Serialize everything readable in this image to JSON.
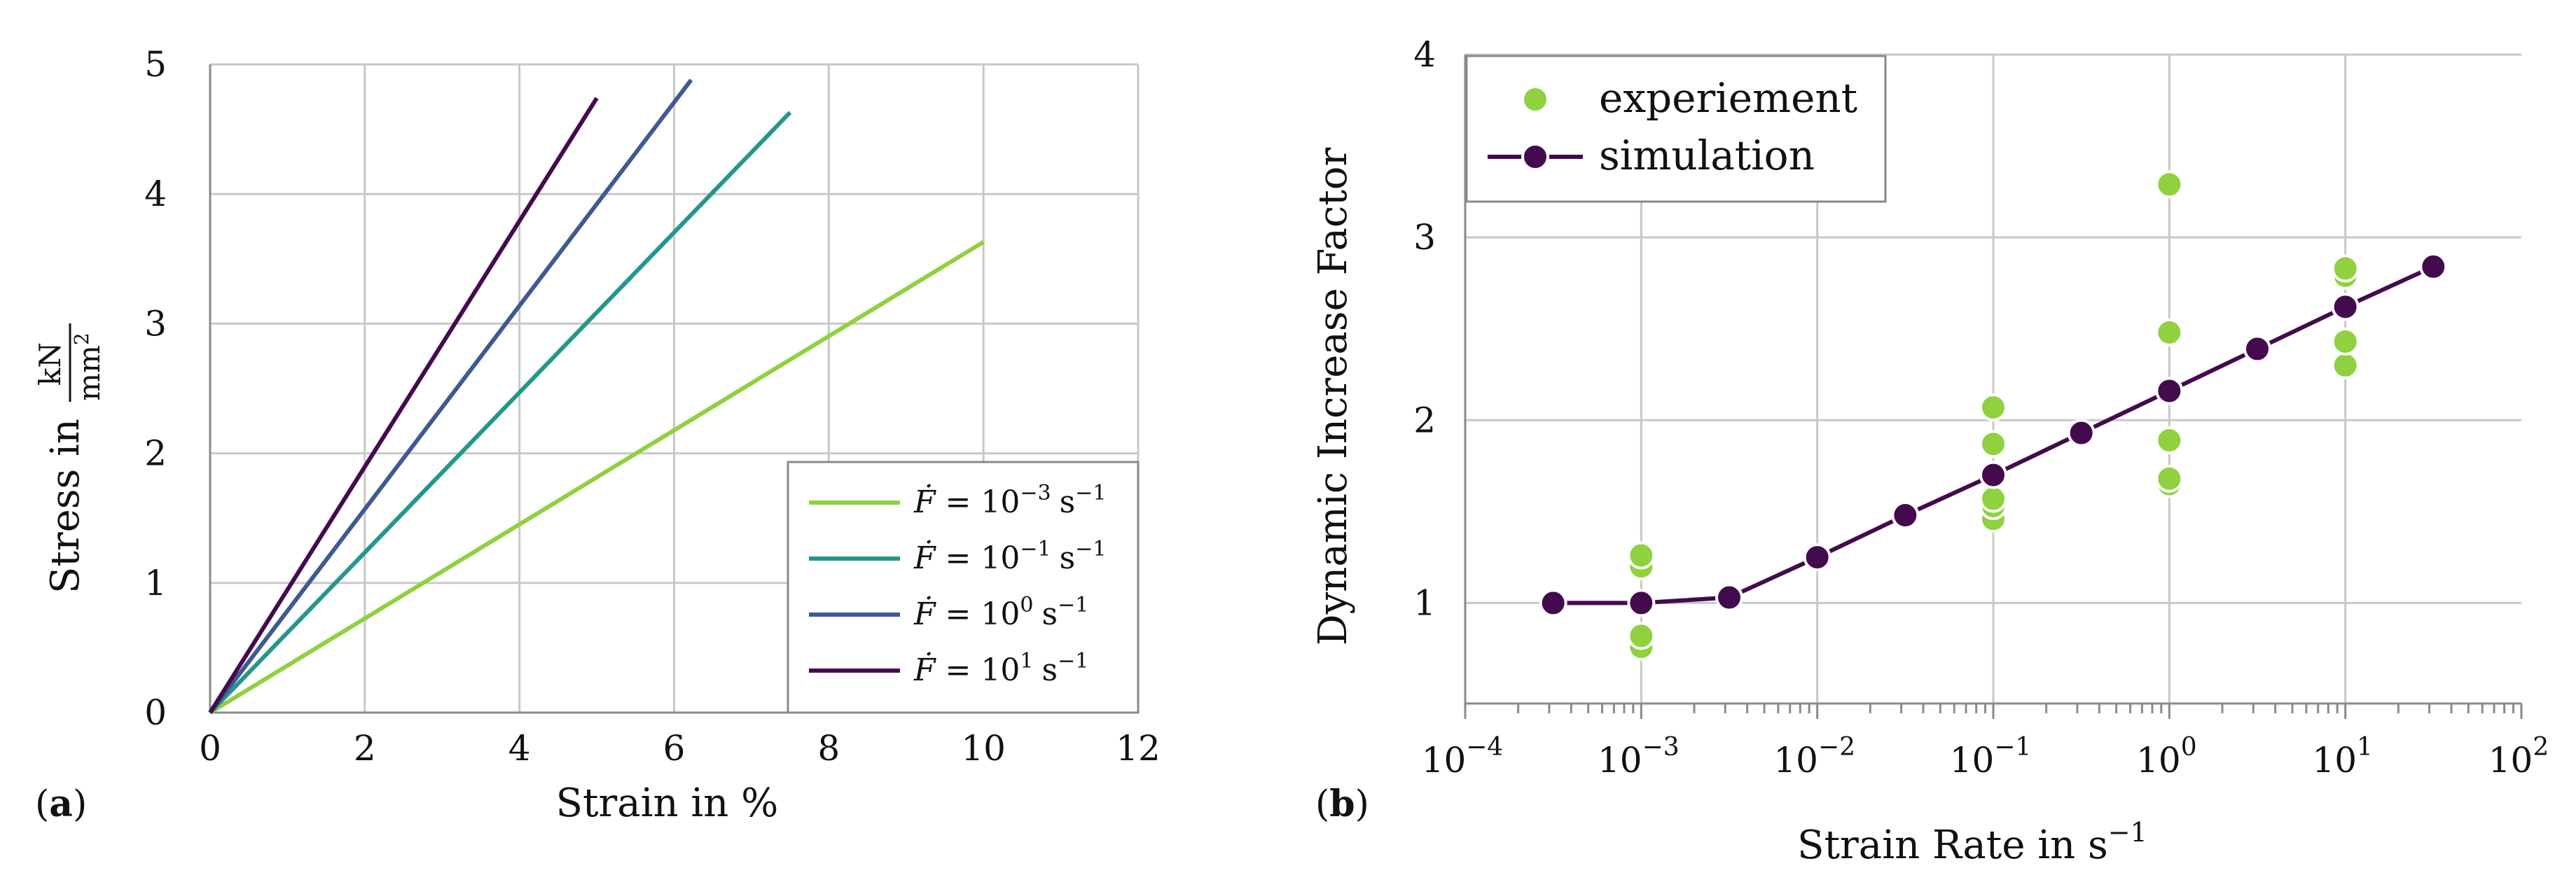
{
  "colors": {
    "grid": "#c8c8c8",
    "axis": "#8a8a8a",
    "c1": "#8fd13f",
    "c2": "#22988a",
    "c3": "#3e5a92",
    "c4": "#440a4e"
  },
  "chart_data": [
    {
      "type": "line",
      "panel_label": "a",
      "xlabel": "Strain in %",
      "ylabel_prefix": "Stress in",
      "ylabel_frac_num": "kN",
      "ylabel_frac_den": "mm",
      "ylabel_frac_den_sup": "2",
      "xlim": [
        0,
        12
      ],
      "ylim": [
        0,
        5
      ],
      "xticks": [
        0,
        2,
        4,
        6,
        8,
        10,
        12
      ],
      "yticks": [
        0,
        1,
        2,
        3,
        4,
        5
      ],
      "grid": true,
      "legend_position": "bottom-right",
      "series": [
        {
          "name": "Ḟ = 10−3 s−1",
          "base": "10",
          "exp": "−3",
          "unit": "s",
          "unit_exp": "−1",
          "x": [
            0,
            10
          ],
          "y": [
            0,
            3.63
          ],
          "color": "#8fd13f"
        },
        {
          "name": "Ḟ = 10−1 s−1",
          "base": "10",
          "exp": "−1",
          "unit": "s",
          "unit_exp": "−1",
          "x": [
            0,
            7.5
          ],
          "y": [
            0,
            4.63
          ],
          "color": "#22988a"
        },
        {
          "name": "Ḟ = 100 s−1",
          "base": "10",
          "exp": "0",
          "unit": "s",
          "unit_exp": "−1",
          "x": [
            0,
            6.22
          ],
          "y": [
            0,
            4.88
          ],
          "color": "#3e5a92"
        },
        {
          "name": "Ḟ = 101 s−1",
          "base": "10",
          "exp": "1",
          "unit": "s",
          "unit_exp": "−1",
          "x": [
            0,
            5.0
          ],
          "y": [
            0,
            4.74
          ],
          "color": "#440a4e"
        }
      ]
    },
    {
      "type": "scatter",
      "panel_label": "b",
      "xscale": "log",
      "xlabel_prefix": "Strain Rate in s",
      "xlabel_exp": "−1",
      "ylabel": "Dynamic Increase Factor",
      "xlim_log10": [
        -4,
        2
      ],
      "ylim": [
        0.45,
        4
      ],
      "xtick_base": "10",
      "xtick_exponents": [
        "−4",
        "−3",
        "−2",
        "−1",
        "0",
        "1",
        "2"
      ],
      "yticks": [
        1,
        2,
        3,
        4
      ],
      "grid": true,
      "legend_position": "top-left",
      "series": [
        {
          "name": "experiement",
          "color": "#8fd13f",
          "marker": "circle",
          "points": [
            [
              -3,
              0.76
            ],
            [
              -3,
              0.82
            ],
            [
              -3,
              1.2
            ],
            [
              -3,
              1.26
            ],
            [
              -1,
              1.46
            ],
            [
              -1,
              1.53
            ],
            [
              -1,
              1.57
            ],
            [
              -1,
              1.87
            ],
            [
              -1,
              2.07
            ],
            [
              0,
              1.65
            ],
            [
              0,
              1.68
            ],
            [
              0,
              1.89
            ],
            [
              0,
              2.48
            ],
            [
              0,
              3.29
            ],
            [
              1,
              2.3
            ],
            [
              1,
              2.43
            ],
            [
              1,
              2.79
            ],
            [
              1,
              2.83
            ]
          ]
        },
        {
          "name": "simulation",
          "color": "#440a4e",
          "marker": "circle-line",
          "points": [
            [
              -3.5,
              1.0
            ],
            [
              -3,
              1.0
            ],
            [
              -2.5,
              1.03
            ],
            [
              -2,
              1.25
            ],
            [
              -1.5,
              1.48
            ],
            [
              -1,
              1.7
            ],
            [
              -0.5,
              1.93
            ],
            [
              0,
              2.16
            ],
            [
              0.5,
              2.39
            ],
            [
              1,
              2.62
            ],
            [
              1.5,
              2.84
            ]
          ]
        }
      ]
    }
  ]
}
